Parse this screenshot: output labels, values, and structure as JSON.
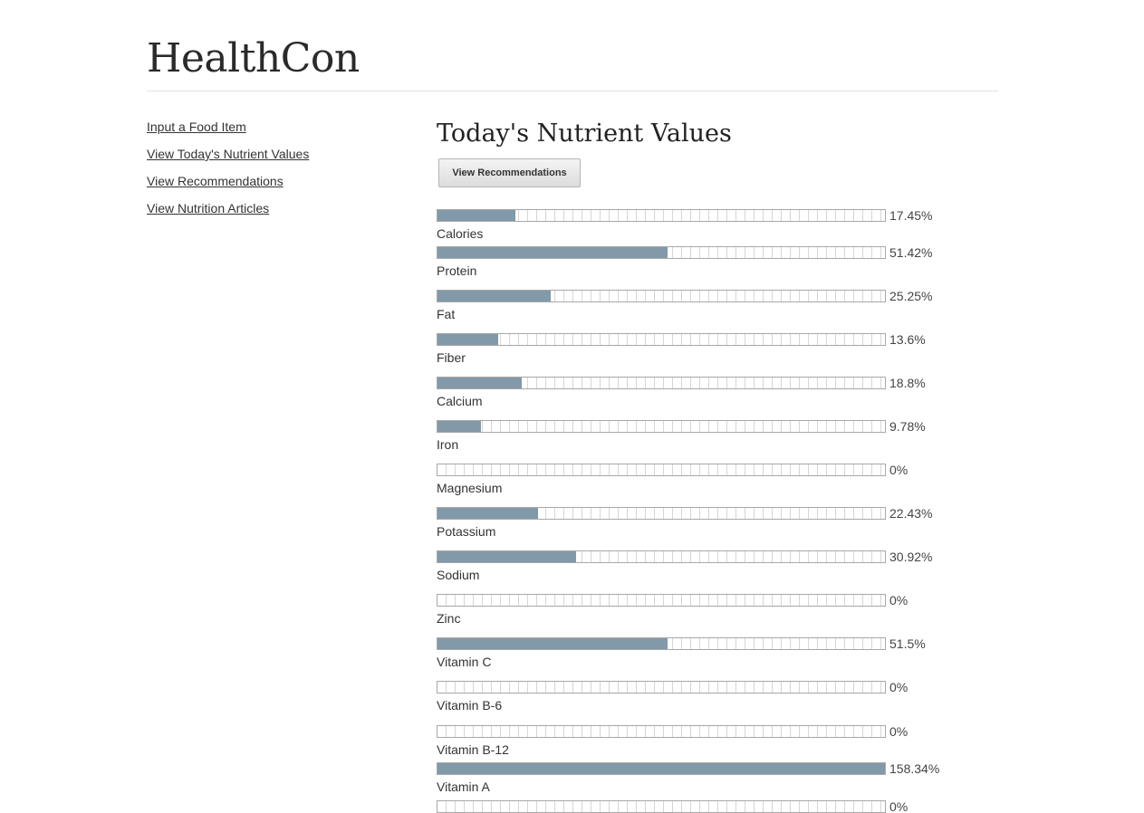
{
  "header": {
    "site_title": "HealthCon"
  },
  "sidebar": {
    "links": [
      {
        "label": "Input a Food Item"
      },
      {
        "label": "View Today's Nutrient Values"
      },
      {
        "label": "View Recommendations"
      },
      {
        "label": "View Nutrition Articles"
      }
    ]
  },
  "main": {
    "title": "Today's Nutrient Values",
    "button_label": "View Recommendations"
  },
  "nutrients": [
    {
      "name": "Calories",
      "percent": 17.45,
      "display": "17.45%"
    },
    {
      "name": "Protein",
      "percent": 51.42,
      "display": "51.42%"
    },
    {
      "name": "Fat",
      "percent": 25.25,
      "display": "25.25%"
    },
    {
      "name": "Fiber",
      "percent": 13.6,
      "display": "13.6%"
    },
    {
      "name": "Calcium",
      "percent": 18.8,
      "display": "18.8%"
    },
    {
      "name": "Iron",
      "percent": 9.78,
      "display": "9.78%"
    },
    {
      "name": "Magnesium",
      "percent": 0,
      "display": "0%"
    },
    {
      "name": "Potassium",
      "percent": 22.43,
      "display": "22.43%"
    },
    {
      "name": "Sodium",
      "percent": 30.92,
      "display": "30.92%"
    },
    {
      "name": "Zinc",
      "percent": 0,
      "display": "0%"
    },
    {
      "name": "Vitamin C",
      "percent": 51.5,
      "display": "51.5%"
    },
    {
      "name": "Vitamin B-6",
      "percent": 0,
      "display": "0%"
    },
    {
      "name": "Vitamin B-12",
      "percent": 0,
      "display": "0%"
    },
    {
      "name": "Vitamin A",
      "percent": 158.34,
      "display": "158.34%"
    },
    {
      "name": "",
      "percent": 0,
      "display": "0%"
    }
  ],
  "colors": {
    "bar_fill": "#8299a9"
  }
}
